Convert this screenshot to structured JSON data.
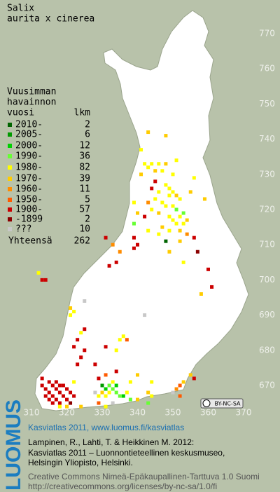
{
  "header": {
    "lines": [
      "Salix",
      "aurita x cinerea"
    ]
  },
  "legend": {
    "title": [
      "Vuusimman",
      "havainnon"
    ],
    "col_period": "vuosi",
    "col_count": "lkm",
    "rows": [
      {
        "label": "2010-",
        "count": 2,
        "color": "#006400"
      },
      {
        "label": "2005-",
        "count": 6,
        "color": "#009a00"
      },
      {
        "label": "2000-",
        "count": 12,
        "color": "#00d000"
      },
      {
        "label": "1990-",
        "count": 36,
        "color": "#66ff33"
      },
      {
        "label": "1980-",
        "count": 82,
        "color": "#ffff00"
      },
      {
        "label": "1970-",
        "count": 39,
        "color": "#ffcc00"
      },
      {
        "label": "1960-",
        "count": 11,
        "color": "#ff8c00"
      },
      {
        "label": "1950-",
        "count": 5,
        "color": "#ff5a00"
      },
      {
        "label": "1900-",
        "count": 57,
        "color": "#cc0000"
      },
      {
        "label": "-1899",
        "count": 2,
        "color": "#8b0000"
      },
      {
        "label": "???",
        "count": 10,
        "color": "#c8c8c8"
      }
    ],
    "total_label": "Yhteensä",
    "total": 262
  },
  "map": {
    "xticks": [
      310,
      320,
      330,
      340,
      350,
      360,
      370
    ],
    "yticks": [
      770,
      760,
      750,
      740,
      730,
      720,
      710,
      700,
      690,
      680,
      670
    ],
    "squares": [
      [
        313,
        670,
        8
      ],
      [
        314,
        669,
        8
      ],
      [
        315,
        668,
        8
      ],
      [
        314,
        667,
        8
      ],
      [
        316,
        670,
        8
      ],
      [
        317,
        669,
        8
      ],
      [
        316,
        667,
        8
      ],
      [
        318,
        668,
        8
      ],
      [
        315,
        666,
        8
      ],
      [
        317,
        666,
        8
      ],
      [
        319,
        667,
        8
      ],
      [
        318,
        670,
        8
      ],
      [
        320,
        669,
        8
      ],
      [
        316,
        665,
        8
      ],
      [
        318,
        665,
        8
      ],
      [
        320,
        666,
        8
      ],
      [
        321,
        668,
        8
      ],
      [
        313,
        672,
        8
      ],
      [
        315,
        671,
        8
      ],
      [
        317,
        671,
        8
      ],
      [
        319,
        670,
        8
      ],
      [
        322,
        667,
        8
      ],
      [
        321,
        665,
        9
      ],
      [
        318,
        664,
        4
      ],
      [
        320,
        664,
        5
      ],
      [
        322,
        671,
        4
      ],
      [
        323,
        676,
        8
      ],
      [
        324,
        678,
        8
      ],
      [
        322,
        681,
        8
      ],
      [
        325,
        680,
        8
      ],
      [
        323,
        683,
        8
      ],
      [
        325,
        686,
        8
      ],
      [
        328,
        676,
        8
      ],
      [
        329,
        672,
        8
      ],
      [
        331,
        681,
        8
      ],
      [
        324,
        685,
        4
      ],
      [
        321,
        690,
        4
      ],
      [
        322,
        691,
        4
      ],
      [
        321,
        692,
        5
      ],
      [
        313,
        700,
        8
      ],
      [
        314,
        700,
        8
      ],
      [
        312,
        702,
        4
      ],
      [
        332,
        704,
        8
      ],
      [
        339,
        709,
        8
      ],
      [
        340,
        710,
        8
      ],
      [
        331,
        712,
        8
      ],
      [
        334,
        705,
        8
      ],
      [
        335,
        708,
        6
      ],
      [
        333,
        710,
        6
      ],
      [
        330,
        670,
        1
      ],
      [
        331,
        669,
        2
      ],
      [
        332,
        670,
        3
      ],
      [
        333,
        669,
        3
      ],
      [
        334,
        668,
        3
      ],
      [
        335,
        667,
        3
      ],
      [
        336,
        667,
        2
      ],
      [
        332,
        668,
        4
      ],
      [
        333,
        671,
        4
      ],
      [
        331,
        667,
        4
      ],
      [
        330,
        668,
        5
      ],
      [
        329,
        667,
        4
      ],
      [
        334,
        670,
        2
      ],
      [
        337,
        668,
        4
      ],
      [
        338,
        666,
        3
      ],
      [
        340,
        666,
        5
      ],
      [
        343,
        668,
        5
      ],
      [
        338,
        671,
        4
      ],
      [
        340,
        673,
        5
      ],
      [
        343,
        665,
        3
      ],
      [
        344,
        667,
        4
      ],
      [
        331,
        673,
        7
      ],
      [
        334,
        674,
        8
      ],
      [
        331,
        664,
        4
      ],
      [
        333,
        665,
        10
      ],
      [
        328,
        668,
        10
      ],
      [
        329,
        665,
        7
      ],
      [
        324,
        664,
        5
      ],
      [
        351,
        669,
        6
      ],
      [
        352,
        670,
        7
      ],
      [
        350,
        668,
        10
      ],
      [
        353,
        671,
        5
      ],
      [
        356,
        672,
        8
      ],
      [
        355,
        673,
        5
      ],
      [
        352,
        667,
        7
      ],
      [
        342,
        733,
        4
      ],
      [
        343,
        732,
        4
      ],
      [
        344,
        733,
        4
      ],
      [
        345,
        731,
        5
      ],
      [
        346,
        733,
        4
      ],
      [
        347,
        731,
        4
      ],
      [
        348,
        733,
        5
      ],
      [
        350,
        730,
        4
      ],
      [
        341,
        730,
        5
      ],
      [
        348,
        727,
        4
      ],
      [
        349,
        726,
        4
      ],
      [
        350,
        725,
        4
      ],
      [
        351,
        724,
        5
      ],
      [
        352,
        723,
        4
      ],
      [
        349,
        724,
        4
      ],
      [
        347,
        722,
        4
      ],
      [
        348,
        721,
        4
      ],
      [
        350,
        721,
        4
      ],
      [
        351,
        720,
        3
      ],
      [
        353,
        719,
        3
      ],
      [
        352,
        718,
        4
      ],
      [
        349,
        718,
        4
      ],
      [
        350,
        717,
        4
      ],
      [
        351,
        716,
        4
      ],
      [
        353,
        716,
        4
      ],
      [
        354,
        717,
        5
      ],
      [
        346,
        725,
        4
      ],
      [
        345,
        723,
        4
      ],
      [
        346,
        719,
        5
      ],
      [
        343,
        722,
        6
      ],
      [
        344,
        720,
        4
      ],
      [
        347,
        715,
        5
      ],
      [
        349,
        714,
        4
      ],
      [
        352,
        714,
        5
      ],
      [
        354,
        713,
        6
      ],
      [
        355,
        725,
        5
      ],
      [
        356,
        729,
        4
      ],
      [
        343,
        742,
        5
      ],
      [
        348,
        741,
        5
      ],
      [
        341,
        737,
        4
      ],
      [
        351,
        734,
        4
      ],
      [
        345,
        728,
        8
      ],
      [
        344,
        726,
        8
      ],
      [
        342,
        718,
        8
      ],
      [
        340,
        719,
        5
      ],
      [
        339,
        722,
        4
      ],
      [
        339,
        716,
        3
      ],
      [
        339,
        712,
        8
      ],
      [
        343,
        714,
        4
      ],
      [
        346,
        713,
        4
      ],
      [
        348,
        711,
        0
      ],
      [
        352,
        711,
        5
      ],
      [
        356,
        712,
        8
      ],
      [
        357,
        708,
        9
      ],
      [
        360,
        703,
        8
      ],
      [
        361,
        698,
        8
      ],
      [
        358,
        696,
        5
      ],
      [
        353,
        705,
        4
      ],
      [
        349,
        708,
        5
      ],
      [
        342,
        690,
        10
      ],
      [
        325,
        694,
        10
      ],
      [
        336,
        684,
        4
      ],
      [
        334,
        680,
        4
      ],
      [
        335,
        683,
        4
      ],
      [
        344,
        671,
        4
      ],
      [
        359,
        723,
        5
      ],
      [
        337,
        683,
        7
      ]
    ]
  },
  "license_badge": "BY-NC-SA",
  "footer": {
    "logo": "LUOMUS",
    "link": "Kasviatlas 2011, www.luomus.fi/kasviatlas",
    "citation": [
      "Lampinen, R., Lahti, T. & Heikkinen M. 2012:",
      "Kasviatlas 2011 – Luonnontieteellinen keskusmuseo,",
      "Helsingin Yliopisto, Helsinki."
    ],
    "license": [
      "Creative Commons Nimeä-Epäkaupallinen-Tarttuva 1.0 Suomi",
      "http://creativecommons.org/licenses/by-nc-sa/1.0/fi"
    ]
  }
}
